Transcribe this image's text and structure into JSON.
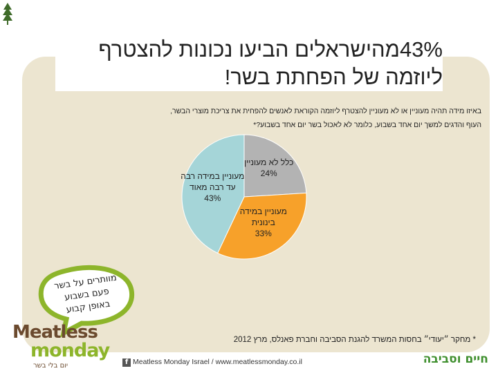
{
  "header": {
    "title_line1": "43%מהישראלים הביעו נכונות להצטרף",
    "title_line2": "ליוזמה של הפחתת בשר!",
    "subtitle_line1": "באיזו מידה תהיה מעוניין או לא מעוניין להצטרף ליוזמה הקוראת לאנשים להפחית את צריכת מוצרי הבשר,",
    "subtitle_line2": "העוף והדגים למשך יום אחד בשבוע, כלומר לא לאכול בשר יום אחד בשבוע?*"
  },
  "chart_data": {
    "type": "pie",
    "slices": [
      {
        "label_line1": "כלל לא מעוניין",
        "label_line2": "",
        "value": 24,
        "value_label": "24%",
        "color": "#b3b3b3"
      },
      {
        "label_line1": "מעוניין במידה",
        "label_line2": "בינונית",
        "value": 33,
        "value_label": "33%",
        "color": "#f7a12a"
      },
      {
        "label_line1": "מעוניין במידה רבה",
        "label_line2": "עד רבה מאוד",
        "value": 43,
        "value_label": "43%",
        "color": "#a5d5d8"
      }
    ],
    "legend": "none",
    "start": "top",
    "direction": "clockwise"
  },
  "bubble": {
    "line1": "מוותרים על בשר",
    "line2": "פעם בשבוע",
    "line3": "באופן קבוע",
    "color": "#8db52b"
  },
  "footnote": "* מחקר ״יעודי״ בחסות המשרד להגנת הסביבה וחברת פאנלס, מרץ 2012",
  "brand": {
    "word1": "Meatless",
    "word2": "monday",
    "tagline": "יום בלי בשר",
    "facebook_icon": "f",
    "links_text": "Meatless Monday Israel / www.meatlessmonday.co.il"
  },
  "partner": {
    "name": "חיים וסביבה"
  }
}
